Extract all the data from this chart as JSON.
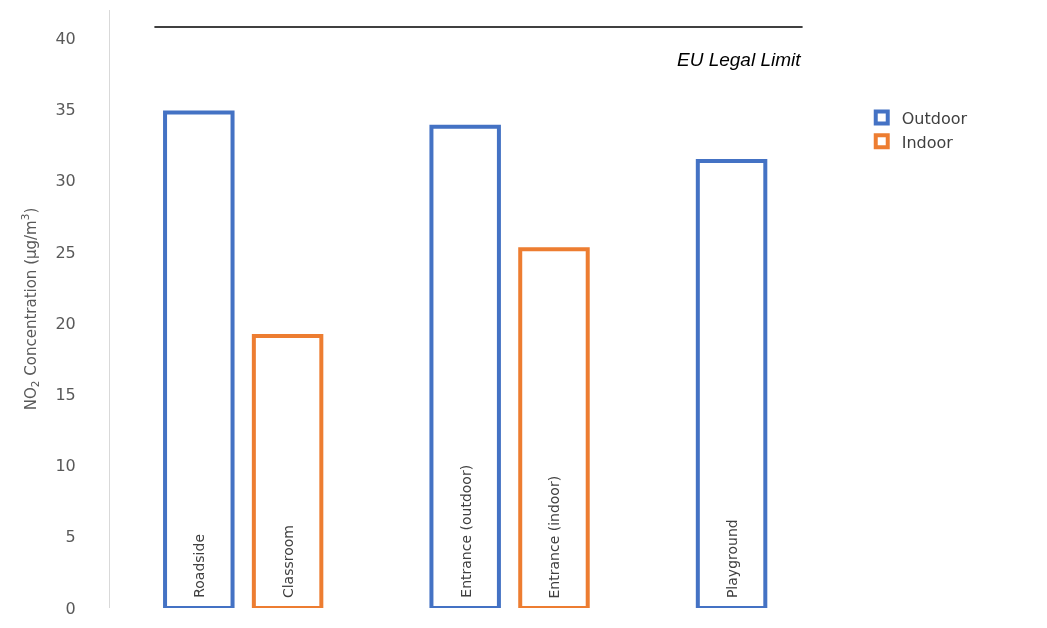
{
  "chart_data": {
    "type": "bar",
    "ylabel": "NO$_{2}$ Concentration (µg/m$^{3}$)",
    "categories": [
      "Roadside",
      "Classroom",
      null,
      "Entrance (outdoor)",
      "Entrance (indoor)",
      null,
      "Playground"
    ],
    "series": [
      {
        "name": "Outdoor",
        "color": "#4472c4",
        "values": [
          34.8,
          null,
          null,
          33.8,
          null,
          null,
          31.4
        ]
      },
      {
        "name": "Indoor",
        "color": "#ed7d31",
        "values": [
          null,
          19.1,
          null,
          null,
          25.2,
          null,
          null
        ]
      }
    ],
    "ylim": [
      0,
      42
    ],
    "yticks": [
      0,
      5,
      10,
      15,
      20,
      25,
      30,
      35,
      40
    ],
    "ref_lines": [
      {
        "axis": "y",
        "value": 40.8,
        "label": "EU Legal Limit",
        "color": "#000000"
      }
    ],
    "legend": "right"
  }
}
